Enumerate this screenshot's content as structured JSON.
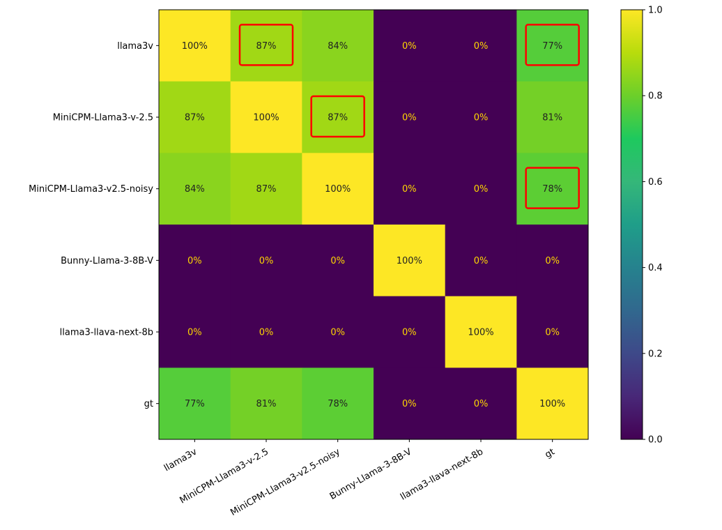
{
  "chart_data": {
    "type": "heatmap",
    "title": "",
    "xlabel": "",
    "ylabel": "",
    "x_labels": [
      "llama3v",
      "MiniCPM-Llama3-v-2.5",
      "MiniCPM-Llama3-v2.5-noisy",
      "Bunny-Llama-3-8B-V",
      "llama3-llava-next-8b",
      "gt"
    ],
    "y_labels": [
      "llama3v",
      "MiniCPM-Llama3-v-2.5",
      "MiniCPM-Llama3-v2.5-noisy",
      "Bunny-Llama-3-8B-V",
      "llama3-llava-next-8b",
      "gt"
    ],
    "values": [
      [
        1.0,
        0.87,
        0.84,
        0.0,
        0.0,
        0.77
      ],
      [
        0.87,
        1.0,
        0.87,
        0.0,
        0.0,
        0.81
      ],
      [
        0.84,
        0.87,
        1.0,
        0.0,
        0.0,
        0.78
      ],
      [
        0.0,
        0.0,
        0.0,
        1.0,
        0.0,
        0.0
      ],
      [
        0.0,
        0.0,
        0.0,
        0.0,
        1.0,
        0.0
      ],
      [
        0.77,
        0.81,
        0.78,
        0.0,
        0.0,
        1.0
      ]
    ],
    "cell_labels": [
      [
        "100%",
        "87%",
        "84%",
        "0%",
        "0%",
        "77%"
      ],
      [
        "87%",
        "100%",
        "87%",
        "0%",
        "0%",
        "81%"
      ],
      [
        "84%",
        "87%",
        "100%",
        "0%",
        "0%",
        "78%"
      ],
      [
        "0%",
        "0%",
        "0%",
        "100%",
        "0%",
        "0%"
      ],
      [
        "0%",
        "0%",
        "0%",
        "0%",
        "100%",
        "0%"
      ],
      [
        "77%",
        "81%",
        "78%",
        "0%",
        "0%",
        "100%"
      ]
    ],
    "highlighted_cells": [
      [
        0,
        1
      ],
      [
        0,
        5
      ],
      [
        1,
        2
      ],
      [
        2,
        5
      ]
    ],
    "highlight_color": "#ff0000",
    "colormap": "viridis",
    "colorbar": {
      "range": [
        0.0,
        1.0
      ],
      "ticks": [
        "0.0",
        "0.2",
        "0.4",
        "0.6",
        "0.8",
        "1.0"
      ]
    },
    "colors": {
      "low_text": "#ffd700",
      "high_text": "#222222"
    }
  }
}
